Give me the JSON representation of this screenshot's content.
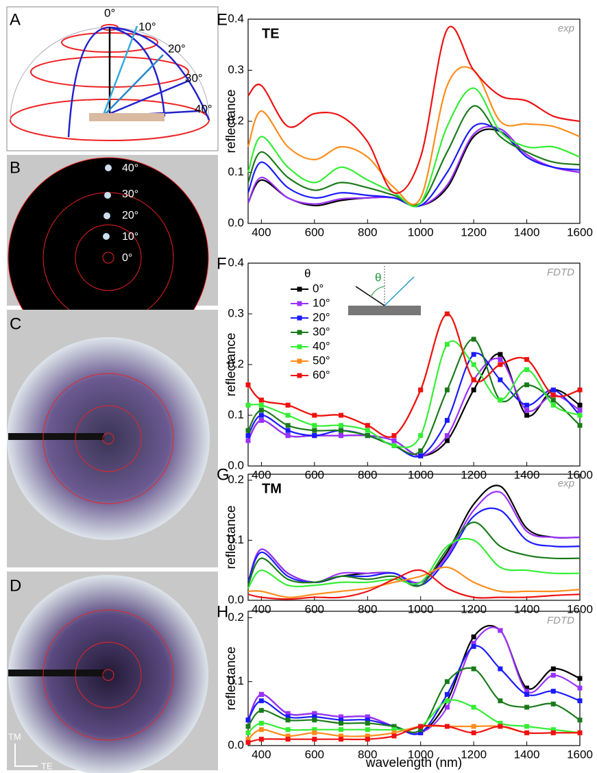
{
  "panels": {
    "A": {
      "label": "A",
      "angles": [
        "0°",
        "10°",
        "20°",
        "30°",
        "40°"
      ]
    },
    "B": {
      "label": "B",
      "angles": [
        "40°",
        "30°",
        "20°",
        "10°",
        "0°"
      ]
    },
    "C": {
      "label": "C"
    },
    "D": {
      "label": "D",
      "axes": [
        "TM",
        "TE"
      ]
    }
  },
  "chart_data": [
    {
      "type": "line",
      "panel_label": "E",
      "title": "TE",
      "annotation": "exp",
      "ylabel": "reflectance",
      "x": [
        350,
        400,
        500,
        600,
        700,
        800,
        900,
        1000,
        1100,
        1200,
        1300,
        1400,
        1500,
        1600
      ],
      "xlim": [
        350,
        1600
      ],
      "ylim": [
        0,
        0.4
      ],
      "xticks": [
        400,
        600,
        800,
        1000,
        1200,
        1400,
        1600
      ],
      "yticks": [
        {
          "value": 0,
          "label": "0.0"
        },
        0.1,
        0.2,
        0.3,
        0.4
      ],
      "markers": false,
      "series": [
        {
          "color": "#000000",
          "values": [
            0.04,
            0.085,
            0.05,
            0.035,
            0.045,
            0.05,
            0.05,
            0.035,
            0.07,
            0.17,
            0.18,
            0.13,
            0.11,
            0.1
          ]
        },
        {
          "color": "#9b30ff",
          "values": [
            0.04,
            0.09,
            0.05,
            0.038,
            0.048,
            0.05,
            0.05,
            0.035,
            0.075,
            0.175,
            0.185,
            0.135,
            0.11,
            0.1
          ]
        },
        {
          "color": "#1a1aff",
          "values": [
            0.06,
            0.12,
            0.07,
            0.05,
            0.06,
            0.055,
            0.05,
            0.035,
            0.1,
            0.19,
            0.18,
            0.13,
            0.11,
            0.105
          ]
        },
        {
          "color": "#1a7a1a",
          "values": [
            0.08,
            0.14,
            0.09,
            0.065,
            0.08,
            0.07,
            0.055,
            0.04,
            0.14,
            0.23,
            0.17,
            0.14,
            0.12,
            0.115
          ]
        },
        {
          "color": "#33ee33",
          "values": [
            0.1,
            0.17,
            0.11,
            0.08,
            0.11,
            0.085,
            0.06,
            0.04,
            0.19,
            0.265,
            0.18,
            0.15,
            0.15,
            0.13
          ]
        },
        {
          "color": "#ff8c1a",
          "values": [
            0.15,
            0.22,
            0.15,
            0.125,
            0.15,
            0.13,
            0.07,
            0.05,
            0.27,
            0.3,
            0.2,
            0.195,
            0.19,
            0.17
          ]
        },
        {
          "color": "#ee1111",
          "values": [
            0.25,
            0.27,
            0.19,
            0.215,
            0.21,
            0.16,
            0.06,
            0.13,
            0.38,
            0.3,
            0.25,
            0.24,
            0.21,
            0.2
          ]
        }
      ]
    },
    {
      "type": "line",
      "panel_label": "F",
      "annotation": "FDTD",
      "ylabel": "reflectance",
      "legend_title": "θ",
      "inset_label": "θ",
      "legend": "upper left",
      "x": [
        350,
        400,
        500,
        600,
        700,
        800,
        900,
        1000,
        1100,
        1200,
        1300,
        1400,
        1500,
        1600
      ],
      "xlim": [
        350,
        1600
      ],
      "ylim": [
        0,
        0.4
      ],
      "xticks": [
        400,
        600,
        800,
        1000,
        1200,
        1400,
        1600
      ],
      "yticks": [
        {
          "value": 0,
          "label": "0.0"
        },
        0.1,
        0.2,
        0.3,
        0.4
      ],
      "markers": true,
      "series": [
        {
          "name": "0°",
          "color": "#000000",
          "values": [
            0.05,
            0.09,
            0.06,
            0.06,
            0.06,
            0.06,
            0.05,
            0.02,
            0.05,
            0.15,
            0.22,
            0.1,
            0.15,
            0.12
          ]
        },
        {
          "name": "10°",
          "color": "#9b30ff",
          "values": [
            0.05,
            0.09,
            0.06,
            0.06,
            0.06,
            0.06,
            0.05,
            0.02,
            0.06,
            0.17,
            0.21,
            0.11,
            0.14,
            0.11
          ]
        },
        {
          "name": "20°",
          "color": "#1a1aff",
          "values": [
            0.06,
            0.1,
            0.07,
            0.06,
            0.07,
            0.06,
            0.04,
            0.02,
            0.09,
            0.22,
            0.17,
            0.12,
            0.15,
            0.1
          ]
        },
        {
          "name": "30°",
          "color": "#1a7a1a",
          "values": [
            0.07,
            0.11,
            0.08,
            0.07,
            0.07,
            0.06,
            0.04,
            0.03,
            0.15,
            0.25,
            0.13,
            0.16,
            0.13,
            0.08
          ]
        },
        {
          "name": "40°",
          "color": "#33ee33",
          "values": [
            0.12,
            0.12,
            0.1,
            0.08,
            0.08,
            0.07,
            0.04,
            0.06,
            0.24,
            0.2,
            0.13,
            0.19,
            0.12,
            0.1
          ]
        },
        {
          "name": "50°",
          "color": "#ff8c1a",
          "values": [
            0.16,
            0.13,
            0.12,
            0.1,
            0.1,
            0.08,
            0.06,
            0.15,
            0.3,
            0.17,
            0.2,
            0.21,
            0.14,
            0.15
          ]
        },
        {
          "name": "60°",
          "color": "#ee1111",
          "values": [
            0.16,
            0.13,
            0.12,
            0.1,
            0.1,
            0.08,
            0.06,
            0.15,
            0.3,
            0.17,
            0.2,
            0.21,
            0.14,
            0.15
          ]
        }
      ]
    },
    {
      "type": "line",
      "panel_label": "G",
      "title": "TM",
      "annotation": "exp",
      "ylabel": "reflectance",
      "x": [
        350,
        400,
        500,
        600,
        700,
        800,
        900,
        1000,
        1100,
        1200,
        1300,
        1400,
        1500,
        1600
      ],
      "xlim": [
        350,
        1600
      ],
      "ylim": [
        0,
        0.21
      ],
      "xticks": [
        400,
        600,
        800,
        1000,
        1200,
        1400,
        1600
      ],
      "yticks": [
        {
          "value": 0,
          "label": "0.0"
        },
        0.1,
        0.2
      ],
      "markers": false,
      "series": [
        {
          "color": "#000000",
          "values": [
            0.03,
            0.085,
            0.045,
            0.03,
            0.04,
            0.045,
            0.045,
            0.03,
            0.08,
            0.16,
            0.19,
            0.12,
            0.105,
            0.105
          ]
        },
        {
          "color": "#9b30ff",
          "values": [
            0.03,
            0.085,
            0.045,
            0.03,
            0.045,
            0.045,
            0.045,
            0.03,
            0.075,
            0.15,
            0.18,
            0.115,
            0.105,
            0.105
          ]
        },
        {
          "color": "#1a1aff",
          "values": [
            0.03,
            0.08,
            0.04,
            0.03,
            0.04,
            0.04,
            0.045,
            0.025,
            0.07,
            0.14,
            0.15,
            0.1,
            0.09,
            0.09
          ]
        },
        {
          "color": "#1a7a1a",
          "values": [
            0.025,
            0.07,
            0.035,
            0.03,
            0.04,
            0.035,
            0.04,
            0.025,
            0.085,
            0.13,
            0.09,
            0.075,
            0.07,
            0.07
          ]
        },
        {
          "color": "#33ee33",
          "values": [
            0.02,
            0.05,
            0.025,
            0.025,
            0.03,
            0.03,
            0.035,
            0.03,
            0.09,
            0.1,
            0.055,
            0.05,
            0.045,
            0.045
          ]
        },
        {
          "color": "#ff8c1a",
          "values": [
            0.015,
            0.015,
            0.005,
            0.01,
            0.015,
            0.02,
            0.03,
            0.04,
            0.055,
            0.03,
            0.015,
            0.015,
            0.015,
            0.018
          ]
        },
        {
          "color": "#ee1111",
          "values": [
            0.01,
            0.005,
            0.002,
            0.005,
            0.005,
            0.015,
            0.035,
            0.05,
            0.02,
            0.005,
            0.005,
            0.005,
            0.008,
            0.01
          ]
        }
      ]
    },
    {
      "type": "line",
      "panel_label": "H",
      "annotation": "FDTD",
      "ylabel": "reflectance",
      "xlabel": "wavelength (nm)",
      "x": [
        350,
        400,
        500,
        600,
        700,
        800,
        900,
        1000,
        1100,
        1200,
        1300,
        1400,
        1500,
        1600
      ],
      "xlim": [
        350,
        1600
      ],
      "ylim": [
        0,
        0.21
      ],
      "xticks": [
        400,
        600,
        800,
        1000,
        1200,
        1400,
        1600
      ],
      "yticks": [
        {
          "value": 0,
          "label": "0.0"
        },
        0.1,
        0.2
      ],
      "markers": true,
      "series": [
        {
          "color": "#000000",
          "values": [
            0.04,
            0.08,
            0.05,
            0.05,
            0.045,
            0.045,
            0.03,
            0.02,
            0.07,
            0.17,
            0.18,
            0.09,
            0.12,
            0.105
          ]
        },
        {
          "color": "#9b30ff",
          "values": [
            0.04,
            0.08,
            0.05,
            0.05,
            0.045,
            0.045,
            0.03,
            0.02,
            0.06,
            0.16,
            0.18,
            0.085,
            0.11,
            0.09
          ]
        },
        {
          "color": "#1a1aff",
          "values": [
            0.04,
            0.07,
            0.045,
            0.045,
            0.04,
            0.04,
            0.03,
            0.02,
            0.08,
            0.155,
            0.12,
            0.08,
            0.085,
            0.07
          ]
        },
        {
          "color": "#1a7a1a",
          "values": [
            0.03,
            0.055,
            0.04,
            0.04,
            0.035,
            0.035,
            0.03,
            0.025,
            0.1,
            0.12,
            0.07,
            0.06,
            0.065,
            0.04
          ]
        },
        {
          "color": "#33ee33",
          "values": [
            0.02,
            0.035,
            0.025,
            0.025,
            0.025,
            0.025,
            0.025,
            0.03,
            0.07,
            0.06,
            0.035,
            0.03,
            0.025,
            0.02
          ]
        },
        {
          "color": "#ff8c1a",
          "values": [
            0.01,
            0.025,
            0.015,
            0.02,
            0.015,
            0.015,
            0.02,
            0.03,
            0.03,
            0.03,
            0.03,
            0.02,
            0.02,
            0.02
          ]
        },
        {
          "color": "#ee1111",
          "values": [
            0.005,
            0.01,
            0.01,
            0.01,
            0.01,
            0.01,
            0.015,
            0.03,
            0.03,
            0.02,
            0.03,
            0.02,
            0.02,
            0.02
          ]
        }
      ]
    }
  ]
}
